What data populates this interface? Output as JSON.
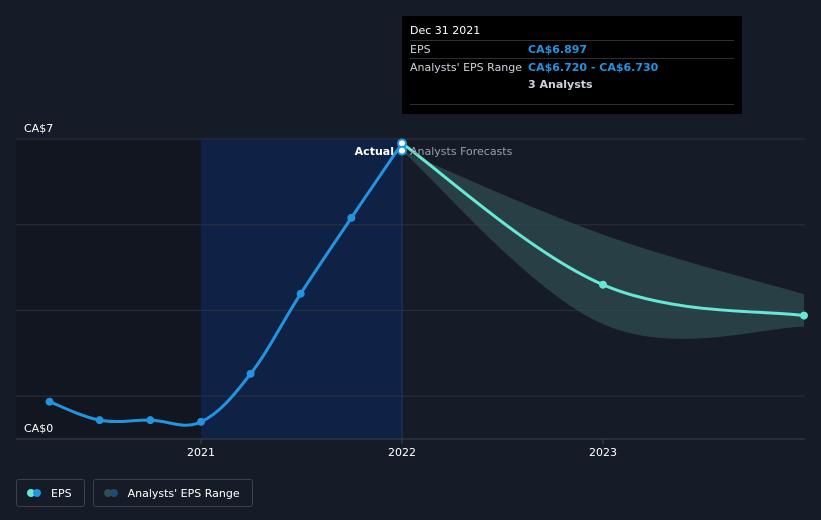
{
  "colors": {
    "eps": "#2394df",
    "forecast": "#67e8d4",
    "range_fill": "#2f4c52",
    "actual_shade": "#0f2246",
    "past_shade": "#111620",
    "grid": "#2a303c",
    "background": "#151b27"
  },
  "tooltip": {
    "date": "Dec 31 2021",
    "eps_label": "EPS",
    "eps_value": "CA$6.897",
    "range_label": "Analysts' EPS Range",
    "range_value": "CA$6.720 - CA$6.730",
    "analysts": "3 Analysts"
  },
  "divider": {
    "actual_label": "Actual",
    "forecast_label": "Analysts Forecasts"
  },
  "legend": {
    "eps_label": "EPS",
    "range_label": "Analysts' EPS Range"
  },
  "chart_data": {
    "type": "line",
    "y_tick_labels": [
      "CA$7",
      "CA$0"
    ],
    "ylim": [
      0,
      7
    ],
    "x_tick_labels": [
      "2021",
      "2022",
      "2023"
    ],
    "xlim": [
      "2020-03-31",
      "2023-12-31"
    ],
    "grid": true,
    "series": [
      {
        "name": "EPS",
        "kind": "actual",
        "points": [
          {
            "x": "2020-03-31",
            "y": 0.87
          },
          {
            "x": "2020-06-30",
            "y": 0.44
          },
          {
            "x": "2020-09-30",
            "y": 0.44
          },
          {
            "x": "2020-12-31",
            "y": 0.4
          },
          {
            "x": "2021-03-31",
            "y": 1.52
          },
          {
            "x": "2021-06-30",
            "y": 3.39
          },
          {
            "x": "2021-09-30",
            "y": 5.16
          },
          {
            "x": "2021-12-31",
            "y": 6.897
          }
        ]
      },
      {
        "name": "EPS",
        "kind": "forecast",
        "points": [
          {
            "x": "2021-12-31",
            "y": 6.897
          },
          {
            "x": "2022-12-31",
            "y": 3.6
          },
          {
            "x": "2023-12-31",
            "y": 2.88
          }
        ]
      },
      {
        "name": "Analysts' EPS Range",
        "kind": "range",
        "points": [
          {
            "x": "2021-12-31",
            "low": 6.72,
            "high": 6.73
          },
          {
            "x": "2022-12-31",
            "low": 2.68,
            "high": 4.77
          },
          {
            "x": "2023-12-31",
            "low": 2.62,
            "high": 3.38
          }
        ]
      }
    ]
  }
}
